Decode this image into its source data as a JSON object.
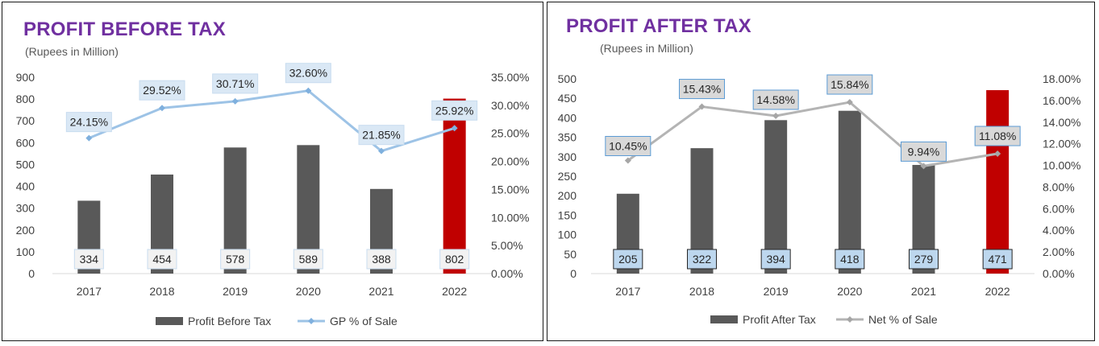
{
  "chart_data": [
    {
      "type": "bar",
      "title": "PROFIT BEFORE TAX",
      "subtitle": "(Rupees in Million)",
      "categories": [
        "2017",
        "2018",
        "2019",
        "2020",
        "2021",
        "2022"
      ],
      "series": [
        {
          "name": "Profit Before Tax",
          "type": "bar",
          "axis": "left",
          "values": [
            334,
            454,
            578,
            589,
            388,
            802
          ]
        },
        {
          "name": "GP % of Sale",
          "type": "line",
          "axis": "right",
          "values": [
            24.15,
            29.52,
            30.71,
            32.6,
            21.85,
            25.92
          ]
        }
      ],
      "bar_labels": [
        "334",
        "454",
        "578",
        "589",
        "388",
        "802"
      ],
      "line_labels": [
        "24.15%",
        "29.52%",
        "30.71%",
        "32.60%",
        "21.85%",
        "25.92%"
      ],
      "ylim": [
        0,
        900
      ],
      "y_ticks": [
        "0",
        "100",
        "200",
        "300",
        "400",
        "500",
        "600",
        "700",
        "800",
        "900"
      ],
      "y2lim": [
        0,
        35
      ],
      "y2_ticks": [
        "0.00%",
        "5.00%",
        "10.00%",
        "15.00%",
        "20.00%",
        "25.00%",
        "30.00%",
        "35.00%"
      ],
      "legend": "bottom",
      "grid": false,
      "colors": {
        "bar": "#595959",
        "highlight_bar": "#c00000",
        "line": "#9dc3e6",
        "label_bg": "#dae8f5",
        "label_border": "#c8dcef",
        "bar_label_bg": "#f2f2f2"
      }
    },
    {
      "type": "bar",
      "title": "PROFIT AFTER TAX",
      "subtitle": "(Rupees in Million)",
      "categories": [
        "2017",
        "2018",
        "2019",
        "2020",
        "2021",
        "2022"
      ],
      "series": [
        {
          "name": "Profit After Tax",
          "type": "bar",
          "axis": "left",
          "values": [
            205,
            322,
            394,
            418,
            279,
            471
          ]
        },
        {
          "name": "Net % of Sale",
          "type": "line",
          "axis": "right",
          "values": [
            10.45,
            15.43,
            14.58,
            15.84,
            9.94,
            11.08
          ]
        }
      ],
      "bar_labels": [
        "205",
        "322",
        "394",
        "418",
        "279",
        "471"
      ],
      "line_labels": [
        "10.45%",
        "15.43%",
        "14.58%",
        "15.84%",
        "9.94%",
        "11.08%"
      ],
      "ylim": [
        0,
        500
      ],
      "y_ticks": [
        "0",
        "50",
        "100",
        "150",
        "200",
        "250",
        "300",
        "350",
        "400",
        "450",
        "500"
      ],
      "y2lim": [
        0,
        18
      ],
      "y2_ticks": [
        "0.00%",
        "2.00%",
        "4.00%",
        "6.00%",
        "8.00%",
        "10.00%",
        "12.00%",
        "14.00%",
        "16.00%",
        "18.00%"
      ],
      "legend": "bottom",
      "grid": false,
      "colors": {
        "bar": "#595959",
        "highlight_bar": "#c00000",
        "line": "#b4b4b4",
        "label_bg": "#d9d9d9",
        "label_border": "#5b9bd5",
        "bar_label_bg": "#bdd7ee"
      }
    }
  ]
}
